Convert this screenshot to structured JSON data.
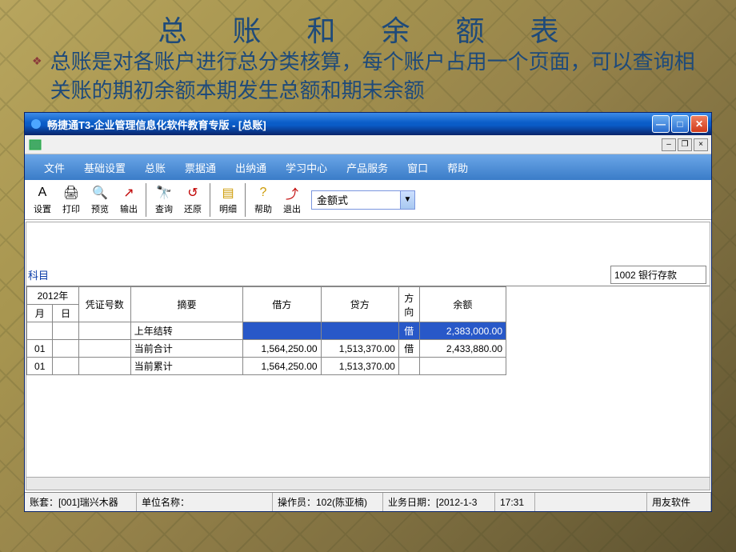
{
  "slide": {
    "title": "总 账 和 余 额 表",
    "bullet": "总账是对各账户进行总分类核算，每个账户占用一个页面，可以查询相关账的期初余额本期发生总额和期末余额"
  },
  "window": {
    "title": "畅捷通T3-企业管理信息化软件教育专版 - [总账]"
  },
  "menu": [
    "文件",
    "基础设置",
    "总账",
    "票据通",
    "出纳通",
    "学习中心",
    "产品服务",
    "窗口",
    "帮助"
  ],
  "toolbar": [
    {
      "icon": "A",
      "label": "设置",
      "name": "settings-button",
      "color": "#000"
    },
    {
      "icon": "🖨",
      "label": "打印",
      "name": "print-button",
      "color": "#000"
    },
    {
      "icon": "🔍",
      "label": "预览",
      "name": "preview-button",
      "color": "#000"
    },
    {
      "icon": "↗",
      "label": "输出",
      "name": "export-button",
      "color": "#c00000"
    },
    {
      "sep": true
    },
    {
      "icon": "🔭",
      "label": "查询",
      "name": "query-button",
      "color": "#000"
    },
    {
      "icon": "↺",
      "label": "还原",
      "name": "restore-button",
      "color": "#c00000"
    },
    {
      "sep": true
    },
    {
      "icon": "▤",
      "label": "明细",
      "name": "detail-button",
      "color": "#cc9900"
    },
    {
      "sep": true
    },
    {
      "icon": "?",
      "label": "帮助",
      "name": "help-button",
      "color": "#cc9900"
    },
    {
      "icon": "⤴",
      "label": "退出",
      "name": "exit-button",
      "color": "#c00000"
    }
  ],
  "dropdown": {
    "label": "金额式"
  },
  "account": {
    "label": "科目",
    "value": "1002 银行存款"
  },
  "table": {
    "year": "2012年",
    "headers": {
      "month": "月",
      "day": "日",
      "voucher": "凭证号数",
      "summary": "摘要",
      "debit": "借方",
      "credit": "贷方",
      "direction": "方向",
      "balance": "余额"
    },
    "rows": [
      {
        "month": "",
        "day": "",
        "voucher": "",
        "summary": "上年结转",
        "debit": "",
        "credit": "",
        "direction": "借",
        "balance": "2,383,000.00",
        "highlight": true
      },
      {
        "month": "01",
        "day": "",
        "voucher": "",
        "summary": "当前合计",
        "debit": "1,564,250.00",
        "credit": "1,513,370.00",
        "direction": "借",
        "balance": "2,433,880.00"
      },
      {
        "month": "01",
        "day": "",
        "voucher": "",
        "summary": "当前累计",
        "debit": "1,564,250.00",
        "credit": "1,513,370.00",
        "direction": "",
        "balance": ""
      }
    ]
  },
  "status": {
    "suite": "账套：[001]瑞兴木器",
    "unit": "单位名称：",
    "operator": "操作员：102(陈亚楠)",
    "bizdate": "业务日期：[2012-1-3",
    "time": "17:31",
    "vendor": "用友软件"
  },
  "colors": {
    "title_text": "#1e4a7a",
    "titlebar_grad_top": "#3d8ce8",
    "titlebar_grad_bottom": "#0a246a",
    "menubar_grad_top": "#6ba6e8",
    "menubar_grad_bottom": "#3a7cc8",
    "highlight_bg": "#2858c8"
  }
}
